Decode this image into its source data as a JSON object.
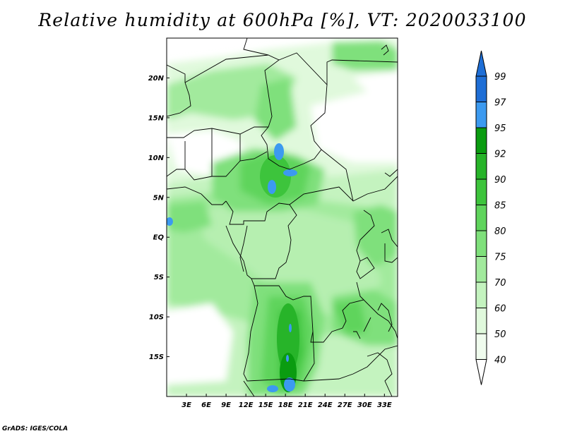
{
  "title": "Relative humidity at 600hPa [%], VT: 2020033100",
  "credit": "GrADS: IGES/COLA",
  "map": {
    "lat_labels": [
      "20N",
      "15N",
      "10N",
      "5N",
      "EQ",
      "5S",
      "10S",
      "15S"
    ],
    "lat_values": [
      20,
      15,
      10,
      5,
      0,
      -5,
      -10,
      -15
    ],
    "lon_labels": [
      "3E",
      "6E",
      "9E",
      "12E",
      "15E",
      "18E",
      "21E",
      "24E",
      "27E",
      "30E",
      "33E"
    ],
    "lon_values": [
      3,
      6,
      9,
      12,
      15,
      18,
      21,
      24,
      27,
      30,
      33
    ],
    "lon_range": [
      0,
      35
    ],
    "lat_range": [
      -20,
      25
    ]
  },
  "colorbar": {
    "levels": [
      "99",
      "97",
      "95",
      "92",
      "90",
      "85",
      "80",
      "75",
      "70",
      "60",
      "50",
      "40"
    ],
    "colors": [
      "#1e6ed6",
      "#1e6ed6",
      "#3c9af0",
      "#0a9c10",
      "#27b429",
      "#3dc43c",
      "#5fd45c",
      "#7fe07b",
      "#a2ea9d",
      "#c4f3bf",
      "#e0f9dc",
      "#f0fcee",
      "#ffffff"
    ]
  }
}
